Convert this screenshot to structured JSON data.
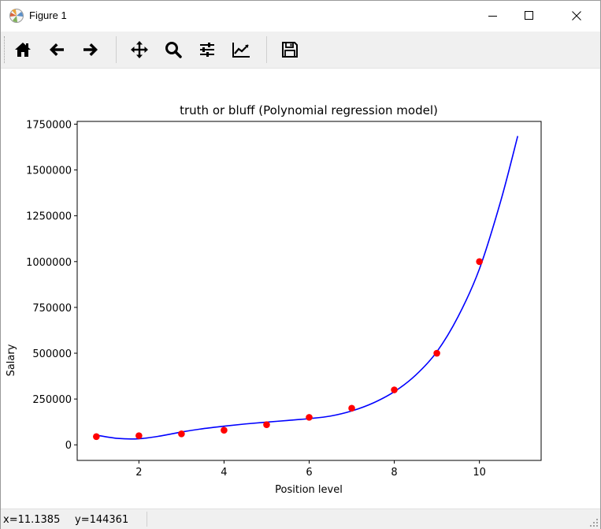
{
  "window": {
    "title": "Figure 1"
  },
  "toolbar": {
    "buttons": [
      {
        "name": "home-icon",
        "tooltip": "Reset original view"
      },
      {
        "name": "back-arrow-icon",
        "tooltip": "Back to previous view"
      },
      {
        "name": "forward-arrow-icon",
        "tooltip": "Forward to next view"
      },
      {
        "name": "pan-move-icon",
        "tooltip": "Pan axes"
      },
      {
        "name": "zoom-magnifier-icon",
        "tooltip": "Zoom to rectangle"
      },
      {
        "name": "subplots-sliders-icon",
        "tooltip": "Configure subplots"
      },
      {
        "name": "axes-line-chart-icon",
        "tooltip": "Edit axis, curve and image parameters"
      },
      {
        "name": "save-floppy-icon",
        "tooltip": "Save the figure"
      }
    ]
  },
  "status": {
    "x": "x=11.1385",
    "y": "y=144361"
  },
  "colors": {
    "scatter": "#ff0000",
    "line": "#0000ff",
    "toolbar_bg": "#f0f0f0"
  },
  "chart_data": {
    "type": "scatter",
    "title": "truth or bluff (Polynomial regression model)",
    "xlabel": "Position level",
    "ylabel": "Salary",
    "xlim": [
      0.55,
      11.45
    ],
    "ylim": [
      -85000,
      1765000
    ],
    "xticks": [
      2,
      4,
      6,
      8,
      10
    ],
    "xtick_labels": [
      "2",
      "4",
      "6",
      "8",
      "10"
    ],
    "yticks": [
      0,
      250000,
      500000,
      750000,
      1000000,
      1250000,
      1500000,
      1750000
    ],
    "ytick_labels": [
      "0",
      "250000",
      "500000",
      "750000",
      "1000000",
      "1250000",
      "1500000",
      "1750000"
    ],
    "grid": false,
    "series": [
      {
        "type": "scatter",
        "color": "#ff0000",
        "x": [
          1,
          2,
          3,
          4,
          5,
          6,
          7,
          8,
          9,
          10
        ],
        "y": [
          45000,
          50000,
          60000,
          80000,
          110000,
          150000,
          200000,
          300000,
          500000,
          1000000
        ]
      },
      {
        "type": "line",
        "color": "#0000ff",
        "x": [
          1.0,
          1.5,
          2.0,
          2.5,
          3.0,
          3.5,
          4.0,
          4.5,
          5.0,
          5.5,
          6.0,
          6.5,
          7.0,
          7.5,
          8.0,
          8.5,
          9.0,
          9.5,
          10.0,
          10.5,
          10.9
        ],
        "y": [
          53000,
          35000,
          33000,
          48000,
          70000,
          88000,
          102000,
          114000,
          124000,
          133000,
          143000,
          157000,
          185000,
          228000,
          290000,
          380000,
          508000,
          700000,
          960000,
          1330000,
          1685000
        ]
      }
    ]
  }
}
